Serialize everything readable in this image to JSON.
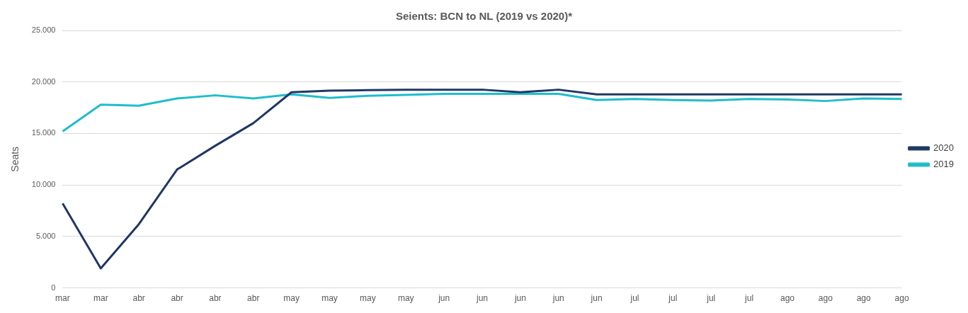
{
  "chart_data": {
    "type": "line",
    "title": "Seients: BCN to NL (2019 vs 2020)*",
    "ylabel": "Seats",
    "categories": [
      "mar",
      "mar",
      "abr",
      "abr",
      "abr",
      "abr",
      "may",
      "may",
      "may",
      "may",
      "jun",
      "jun",
      "jun",
      "jun",
      "jun",
      "jul",
      "jul",
      "jul",
      "jul",
      "ago",
      "ago",
      "ago",
      "ago"
    ],
    "series": [
      {
        "name": "2020",
        "color": "#203864",
        "values": [
          8200,
          1900,
          6200,
          11500,
          13800,
          16000,
          19000,
          19150,
          19200,
          19250,
          19250,
          19250,
          19000,
          19250,
          18800,
          18800,
          18800,
          18800,
          18800,
          18800,
          18800,
          18800,
          18800
        ]
      },
      {
        "name": "2019",
        "color": "#1fbdcc",
        "values": [
          15200,
          17800,
          17700,
          18400,
          18700,
          18400,
          18800,
          18450,
          18650,
          18750,
          18850,
          18850,
          18850,
          18850,
          18250,
          18350,
          18250,
          18200,
          18350,
          18300,
          18150,
          18400,
          18350
        ]
      }
    ],
    "ylim": [
      0,
      25000
    ],
    "yticks": [
      {
        "value": 0,
        "label": "0"
      },
      {
        "value": 5000,
        "label": "5.000"
      },
      {
        "value": 10000,
        "label": "10.000"
      },
      {
        "value": 15000,
        "label": "15.000"
      },
      {
        "value": 20000,
        "label": "20.000"
      },
      {
        "value": 25000,
        "label": "25.000"
      }
    ],
    "grid": "y",
    "legend": "right",
    "marker": "none",
    "line_style": "solid"
  }
}
